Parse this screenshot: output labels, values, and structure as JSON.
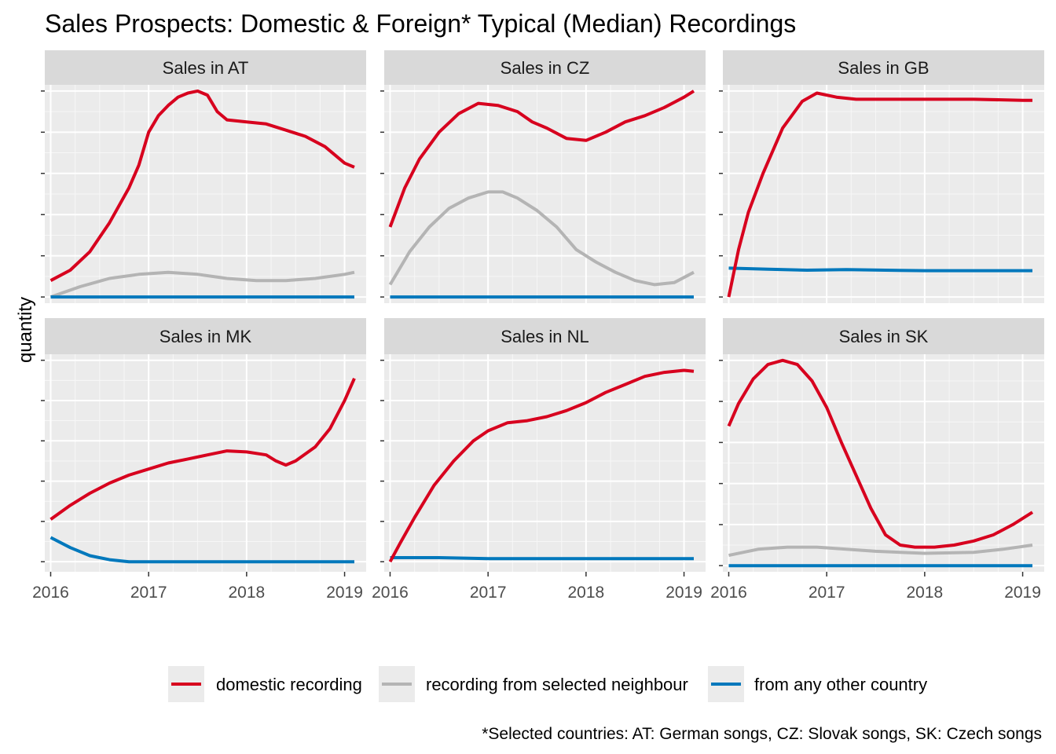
{
  "chart_data": {
    "type": "line",
    "title": "Sales Prospects: Domestic & Foreign* Typical (Median) Recordings",
    "ylabel": "quantity",
    "xlabel": "",
    "caption": "*Selected countries:  AT: German songs, CZ: Slovak songs, SK: Czech songs",
    "x_ticks": [
      2016,
      2017,
      2018,
      2019
    ],
    "xlim": [
      2015.94,
      2019.22
    ],
    "y_tick_labels": "hidden",
    "grid": true,
    "legend_position": "bottom",
    "series_styles": [
      {
        "key": "domestic",
        "name": "domestic recording",
        "color": "#d7001e"
      },
      {
        "key": "neighbour",
        "name": "recording from selected neighbour",
        "color": "#b4b4b4"
      },
      {
        "key": "other",
        "name": "from any other country",
        "color": "#0078bc"
      }
    ],
    "panels": [
      {
        "label": "Sales in AT",
        "ylim": [
          -0.03,
          1.03
        ],
        "series": {
          "domestic": [
            [
              2016.0,
              0.08
            ],
            [
              2016.2,
              0.13
            ],
            [
              2016.4,
              0.22
            ],
            [
              2016.6,
              0.36
            ],
            [
              2016.8,
              0.53
            ],
            [
              2016.9,
              0.64
            ],
            [
              2017.0,
              0.8
            ],
            [
              2017.1,
              0.88
            ],
            [
              2017.2,
              0.93
            ],
            [
              2017.3,
              0.97
            ],
            [
              2017.4,
              0.99
            ],
            [
              2017.5,
              1.0
            ],
            [
              2017.6,
              0.98
            ],
            [
              2017.7,
              0.9
            ],
            [
              2017.8,
              0.86
            ],
            [
              2018.0,
              0.85
            ],
            [
              2018.2,
              0.84
            ],
            [
              2018.4,
              0.81
            ],
            [
              2018.6,
              0.78
            ],
            [
              2018.8,
              0.73
            ],
            [
              2019.0,
              0.65
            ],
            [
              2019.1,
              0.63
            ]
          ],
          "neighbour": [
            [
              2016.0,
              0.0
            ],
            [
              2016.3,
              0.05
            ],
            [
              2016.6,
              0.09
            ],
            [
              2016.9,
              0.11
            ],
            [
              2017.2,
              0.12
            ],
            [
              2017.5,
              0.11
            ],
            [
              2017.8,
              0.09
            ],
            [
              2018.1,
              0.08
            ],
            [
              2018.4,
              0.08
            ],
            [
              2018.7,
              0.09
            ],
            [
              2019.0,
              0.11
            ],
            [
              2019.1,
              0.12
            ]
          ],
          "other": [
            [
              2016.0,
              0.0
            ],
            [
              2019.1,
              0.0
            ]
          ]
        }
      },
      {
        "label": "Sales in CZ",
        "ylim": [
          -0.03,
          1.03
        ],
        "series": {
          "domestic": [
            [
              2016.0,
              0.34
            ],
            [
              2016.15,
              0.53
            ],
            [
              2016.3,
              0.67
            ],
            [
              2016.5,
              0.8
            ],
            [
              2016.7,
              0.89
            ],
            [
              2016.9,
              0.94
            ],
            [
              2017.1,
              0.93
            ],
            [
              2017.3,
              0.9
            ],
            [
              2017.45,
              0.85
            ],
            [
              2017.6,
              0.82
            ],
            [
              2017.8,
              0.77
            ],
            [
              2018.0,
              0.76
            ],
            [
              2018.2,
              0.8
            ],
            [
              2018.4,
              0.85
            ],
            [
              2018.6,
              0.88
            ],
            [
              2018.8,
              0.92
            ],
            [
              2019.0,
              0.97
            ],
            [
              2019.1,
              1.0
            ]
          ],
          "neighbour": [
            [
              2016.0,
              0.06
            ],
            [
              2016.2,
              0.22
            ],
            [
              2016.4,
              0.34
            ],
            [
              2016.6,
              0.43
            ],
            [
              2016.8,
              0.48
            ],
            [
              2017.0,
              0.51
            ],
            [
              2017.15,
              0.51
            ],
            [
              2017.3,
              0.48
            ],
            [
              2017.5,
              0.42
            ],
            [
              2017.7,
              0.34
            ],
            [
              2017.9,
              0.23
            ],
            [
              2018.1,
              0.17
            ],
            [
              2018.3,
              0.12
            ],
            [
              2018.5,
              0.08
            ],
            [
              2018.7,
              0.06
            ],
            [
              2018.9,
              0.07
            ],
            [
              2019.1,
              0.12
            ]
          ],
          "other": [
            [
              2016.0,
              0.0
            ],
            [
              2019.1,
              0.0
            ]
          ]
        }
      },
      {
        "label": "Sales in GB",
        "ylim": [
          -0.03,
          1.03
        ],
        "series": {
          "domestic": [
            [
              2016.0,
              0.0
            ],
            [
              2016.1,
              0.23
            ],
            [
              2016.2,
              0.41
            ],
            [
              2016.35,
              0.6
            ],
            [
              2016.55,
              0.82
            ],
            [
              2016.75,
              0.95
            ],
            [
              2016.9,
              0.99
            ],
            [
              2017.1,
              0.97
            ],
            [
              2017.3,
              0.96
            ],
            [
              2017.6,
              0.96
            ],
            [
              2018.0,
              0.96
            ],
            [
              2018.5,
              0.96
            ],
            [
              2019.0,
              0.955
            ],
            [
              2019.1,
              0.955
            ]
          ],
          "other": [
            [
              2016.0,
              0.14
            ],
            [
              2016.4,
              0.135
            ],
            [
              2016.8,
              0.13
            ],
            [
              2017.2,
              0.133
            ],
            [
              2017.6,
              0.13
            ],
            [
              2018.0,
              0.128
            ],
            [
              2018.5,
              0.128
            ],
            [
              2019.1,
              0.128
            ]
          ]
        }
      },
      {
        "label": "Sales in MK",
        "ylim": [
          -0.05,
          1.03
        ],
        "series": {
          "domestic": [
            [
              2016.0,
              0.21
            ],
            [
              2016.2,
              0.28
            ],
            [
              2016.4,
              0.34
            ],
            [
              2016.6,
              0.39
            ],
            [
              2016.8,
              0.43
            ],
            [
              2017.0,
              0.46
            ],
            [
              2017.2,
              0.49
            ],
            [
              2017.4,
              0.51
            ],
            [
              2017.6,
              0.53
            ],
            [
              2017.8,
              0.55
            ],
            [
              2018.0,
              0.545
            ],
            [
              2018.2,
              0.53
            ],
            [
              2018.3,
              0.5
            ],
            [
              2018.4,
              0.48
            ],
            [
              2018.5,
              0.5
            ],
            [
              2018.7,
              0.57
            ],
            [
              2018.85,
              0.66
            ],
            [
              2019.0,
              0.8
            ],
            [
              2019.1,
              0.91
            ]
          ],
          "other": [
            [
              2016.0,
              0.12
            ],
            [
              2016.2,
              0.07
            ],
            [
              2016.4,
              0.03
            ],
            [
              2016.6,
              0.01
            ],
            [
              2016.8,
              0.0
            ],
            [
              2017.0,
              0.0
            ],
            [
              2017.5,
              0.0
            ],
            [
              2018.0,
              0.0
            ],
            [
              2018.5,
              0.0
            ],
            [
              2019.1,
              0.0
            ]
          ]
        }
      },
      {
        "label": "Sales in NL",
        "ylim": [
          -0.05,
          1.03
        ],
        "series": {
          "domestic": [
            [
              2016.0,
              0.0
            ],
            [
              2016.1,
              0.09
            ],
            [
              2016.25,
              0.22
            ],
            [
              2016.45,
              0.38
            ],
            [
              2016.65,
              0.5
            ],
            [
              2016.85,
              0.6
            ],
            [
              2017.0,
              0.65
            ],
            [
              2017.2,
              0.69
            ],
            [
              2017.4,
              0.7
            ],
            [
              2017.6,
              0.72
            ],
            [
              2017.8,
              0.75
            ],
            [
              2018.0,
              0.79
            ],
            [
              2018.2,
              0.84
            ],
            [
              2018.4,
              0.88
            ],
            [
              2018.6,
              0.92
            ],
            [
              2018.8,
              0.94
            ],
            [
              2019.0,
              0.95
            ],
            [
              2019.1,
              0.945
            ]
          ],
          "other": [
            [
              2016.0,
              0.02
            ],
            [
              2016.5,
              0.02
            ],
            [
              2017.0,
              0.015
            ],
            [
              2018.0,
              0.015
            ],
            [
              2019.1,
              0.015
            ]
          ]
        }
      },
      {
        "label": "Sales in SK",
        "ylim": [
          -0.03,
          1.03
        ],
        "series": {
          "domestic": [
            [
              2016.0,
              0.68
            ],
            [
              2016.1,
              0.79
            ],
            [
              2016.25,
              0.91
            ],
            [
              2016.4,
              0.98
            ],
            [
              2016.55,
              1.0
            ],
            [
              2016.7,
              0.98
            ],
            [
              2016.85,
              0.9
            ],
            [
              2017.0,
              0.77
            ],
            [
              2017.15,
              0.6
            ],
            [
              2017.3,
              0.44
            ],
            [
              2017.45,
              0.28
            ],
            [
              2017.6,
              0.15
            ],
            [
              2017.75,
              0.1
            ],
            [
              2017.9,
              0.09
            ],
            [
              2018.1,
              0.09
            ],
            [
              2018.3,
              0.1
            ],
            [
              2018.5,
              0.12
            ],
            [
              2018.7,
              0.15
            ],
            [
              2018.9,
              0.2
            ],
            [
              2019.1,
              0.26
            ]
          ],
          "neighbour": [
            [
              2016.0,
              0.05
            ],
            [
              2016.3,
              0.08
            ],
            [
              2016.6,
              0.09
            ],
            [
              2016.9,
              0.09
            ],
            [
              2017.2,
              0.08
            ],
            [
              2017.5,
              0.07
            ],
            [
              2018.0,
              0.06
            ],
            [
              2018.5,
              0.065
            ],
            [
              2018.8,
              0.08
            ],
            [
              2019.1,
              0.1
            ]
          ],
          "other": [
            [
              2016.0,
              0.0
            ],
            [
              2019.1,
              0.0
            ]
          ]
        }
      }
    ]
  }
}
